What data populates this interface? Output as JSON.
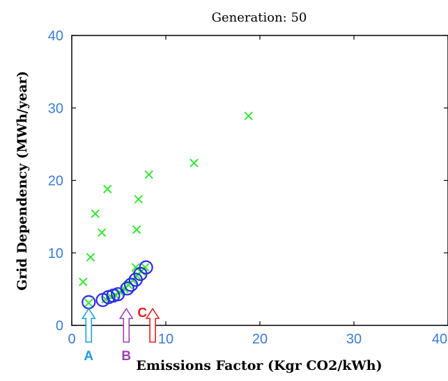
{
  "chart_data": {
    "type": "scatter",
    "title": "Generation:  50",
    "xlabel": "Emissions Factor (Kgr CO2/kWh)",
    "ylabel": "Grid Dependency (MWh/year)",
    "xlim": [
      0,
      40
    ],
    "ylim": [
      0,
      40
    ],
    "x_ticks": [
      "0",
      "10",
      "20",
      "30",
      "40"
    ],
    "y_ticks": [
      "0",
      "10",
      "20",
      "30",
      "40"
    ],
    "grid": false,
    "series": [
      {
        "marker": "x",
        "color": "#33e633",
        "points": [
          {
            "x": 1.2,
            "y": 6.0
          },
          {
            "x": 2.0,
            "y": 9.4
          },
          {
            "x": 2.5,
            "y": 15.4
          },
          {
            "x": 3.2,
            "y": 12.8
          },
          {
            "x": 3.8,
            "y": 18.8
          },
          {
            "x": 1.8,
            "y": 3.1
          },
          {
            "x": 3.6,
            "y": 3.6
          },
          {
            "x": 4.2,
            "y": 3.9
          },
          {
            "x": 4.6,
            "y": 4.2
          },
          {
            "x": 5.1,
            "y": 4.6
          },
          {
            "x": 5.6,
            "y": 5.0
          },
          {
            "x": 6.0,
            "y": 5.6
          },
          {
            "x": 6.5,
            "y": 6.2
          },
          {
            "x": 6.9,
            "y": 6.9
          },
          {
            "x": 7.4,
            "y": 7.4
          },
          {
            "x": 7.8,
            "y": 8.0
          },
          {
            "x": 6.9,
            "y": 13.2
          },
          {
            "x": 7.1,
            "y": 17.4
          },
          {
            "x": 8.2,
            "y": 20.8
          },
          {
            "x": 6.8,
            "y": 8.0
          },
          {
            "x": 13.0,
            "y": 22.4
          },
          {
            "x": 18.8,
            "y": 28.9
          }
        ]
      },
      {
        "marker": "o",
        "color": "#2a2ae6",
        "points": [
          {
            "x": 1.8,
            "y": 3.2
          },
          {
            "x": 3.3,
            "y": 3.5
          },
          {
            "x": 3.9,
            "y": 3.9
          },
          {
            "x": 4.4,
            "y": 4.1
          },
          {
            "x": 4.9,
            "y": 4.3
          },
          {
            "x": 5.9,
            "y": 5.1
          },
          {
            "x": 6.3,
            "y": 5.6
          },
          {
            "x": 6.8,
            "y": 6.3
          },
          {
            "x": 7.3,
            "y": 7.1
          },
          {
            "x": 7.9,
            "y": 8.0
          }
        ]
      }
    ],
    "annotations": [
      {
        "text": "A",
        "x": 1.8,
        "color": "#1f9be0"
      },
      {
        "text": "B",
        "x": 5.8,
        "color": "#9b3fb5"
      },
      {
        "text": "C",
        "x": 8.6,
        "color": "#e02020"
      }
    ]
  }
}
